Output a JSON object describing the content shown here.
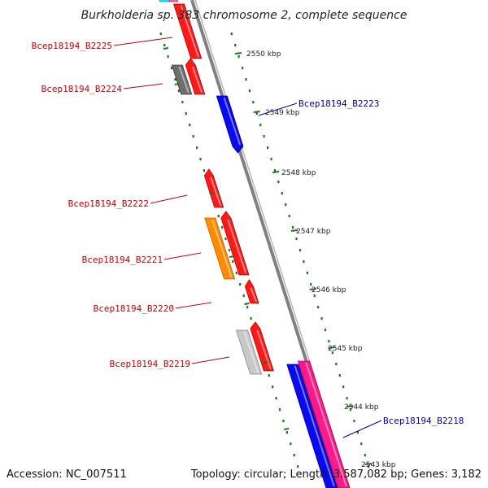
{
  "title": "Burkholderia sp. 383 chromosome 2, complete sequence",
  "footer": {
    "accession": "Accession: NC_007511",
    "summary": "Topology: circular; Length: 3,587,082 bp; Genes: 3,182"
  },
  "colors": {
    "backbone": "#808080",
    "ruler": "#1a7a1a",
    "forward_label": "#cc0000",
    "reverse_label": "#0000aa",
    "red": "#ff1a1a",
    "blue": "#0a0af0",
    "gray_dark": "#6e6e6e",
    "gray_light": "#c8c8c8",
    "orange": "#ff8c00",
    "pink": "#ff1a8c",
    "cyan": "#00e5ff"
  },
  "kbp_markers": [
    {
      "label": "2550 kbp"
    },
    {
      "label": "2549 kbp"
    },
    {
      "label": "2548 kbp"
    },
    {
      "label": "2547 kbp"
    },
    {
      "label": "2546 kbp"
    },
    {
      "label": "2545 kbp"
    },
    {
      "label": "2544 kbp"
    },
    {
      "label": "2543 kbp"
    }
  ],
  "gene_labels": [
    {
      "label": "Bcep18194_B2225",
      "strand": "forward"
    },
    {
      "label": "Bcep18194_B2224",
      "strand": "forward"
    },
    {
      "label": "Bcep18194_B2223",
      "strand": "reverse"
    },
    {
      "label": "Bcep18194_B2222",
      "strand": "forward"
    },
    {
      "label": "Bcep18194_B2221",
      "strand": "forward"
    },
    {
      "label": "Bcep18194_B2220",
      "strand": "forward"
    },
    {
      "label": "Bcep18194_B2219",
      "strand": "forward"
    },
    {
      "label": "Bcep18194_B2218",
      "strand": "reverse"
    }
  ]
}
